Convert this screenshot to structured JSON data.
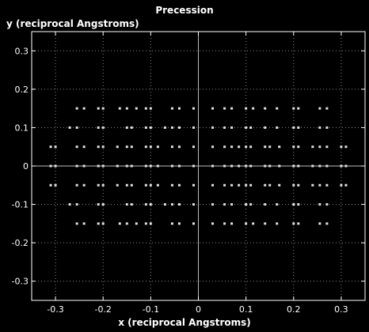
{
  "chart_data": {
    "type": "scatter",
    "title": "Precession",
    "xlabel": "x (reciprocal Angstroms)",
    "ylabel": "y (reciprocal Angstroms)",
    "xlim": [
      -0.35,
      0.35
    ],
    "ylim": [
      -0.35,
      0.35
    ],
    "xticks": [
      -0.3,
      -0.2,
      -0.1,
      0,
      0.1,
      0.2,
      0.3
    ],
    "yticks": [
      -0.3,
      -0.2,
      -0.1,
      0,
      0.1,
      0.2,
      0.3
    ],
    "xtick_labels": [
      "-0.3",
      "-0.2",
      "-0.1",
      "0",
      "0.1",
      "0.2",
      "0.3"
    ],
    "ytick_labels": [
      "-0.3",
      "-0.2",
      "-0.1",
      "0",
      "0.1",
      "0.2",
      "0.3"
    ],
    "grid": true,
    "colors": {
      "background": "#000000",
      "foreground": "#ffffff",
      "points": "#e0e0e0",
      "grid": "#8a8a8a"
    },
    "rows": [
      {
        "y": 0.15,
        "x": [
          -0.255,
          -0.24,
          -0.21,
          -0.2,
          -0.165,
          -0.15,
          -0.13,
          -0.11,
          -0.1,
          -0.055,
          -0.04,
          -0.01,
          0.03,
          0.055,
          0.07,
          0.1,
          0.115,
          0.14,
          0.165,
          0.2,
          0.21,
          0.255,
          0.27
        ]
      },
      {
        "y": 0.1,
        "x": [
          -0.27,
          -0.255,
          -0.21,
          -0.2,
          -0.15,
          -0.14,
          -0.11,
          -0.1,
          -0.07,
          -0.055,
          -0.04,
          -0.01,
          0.03,
          0.055,
          0.07,
          0.1,
          0.11,
          0.14,
          0.165,
          0.2,
          0.21,
          0.255,
          0.27
        ]
      },
      {
        "y": 0.05,
        "x": [
          -0.31,
          -0.3,
          -0.255,
          -0.24,
          -0.21,
          -0.2,
          -0.17,
          -0.15,
          -0.14,
          -0.11,
          -0.1,
          -0.085,
          -0.055,
          -0.04,
          -0.01,
          0.03,
          0.055,
          0.07,
          0.085,
          0.1,
          0.11,
          0.14,
          0.15,
          0.17,
          0.2,
          0.21,
          0.24,
          0.255,
          0.27,
          0.3,
          0.31
        ]
      },
      {
        "y": 0.0,
        "x": [
          -0.31,
          -0.3,
          -0.255,
          -0.24,
          -0.21,
          -0.2,
          -0.17,
          -0.15,
          -0.14,
          -0.11,
          -0.1,
          -0.085,
          -0.055,
          -0.04,
          -0.01,
          0.03,
          0.055,
          0.07,
          0.085,
          0.1,
          0.11,
          0.14,
          0.15,
          0.17,
          0.2,
          0.21,
          0.24,
          0.255,
          0.27,
          0.3,
          0.31
        ]
      },
      {
        "y": -0.05,
        "x": [
          -0.31,
          -0.3,
          -0.255,
          -0.24,
          -0.21,
          -0.2,
          -0.17,
          -0.15,
          -0.14,
          -0.11,
          -0.1,
          -0.085,
          -0.055,
          -0.04,
          -0.01,
          0.03,
          0.055,
          0.07,
          0.085,
          0.1,
          0.11,
          0.14,
          0.15,
          0.17,
          0.2,
          0.21,
          0.24,
          0.255,
          0.27,
          0.3,
          0.31
        ]
      },
      {
        "y": -0.1,
        "x": [
          -0.27,
          -0.255,
          -0.21,
          -0.2,
          -0.15,
          -0.14,
          -0.11,
          -0.1,
          -0.07,
          -0.055,
          -0.04,
          -0.01,
          0.03,
          0.055,
          0.07,
          0.1,
          0.11,
          0.14,
          0.165,
          0.2,
          0.21,
          0.255,
          0.27
        ]
      },
      {
        "y": -0.15,
        "x": [
          -0.255,
          -0.24,
          -0.21,
          -0.2,
          -0.165,
          -0.15,
          -0.13,
          -0.11,
          -0.1,
          -0.055,
          -0.04,
          -0.01,
          0.03,
          0.055,
          0.07,
          0.1,
          0.115,
          0.14,
          0.165,
          0.2,
          0.21,
          0.255,
          0.27
        ]
      }
    ]
  }
}
